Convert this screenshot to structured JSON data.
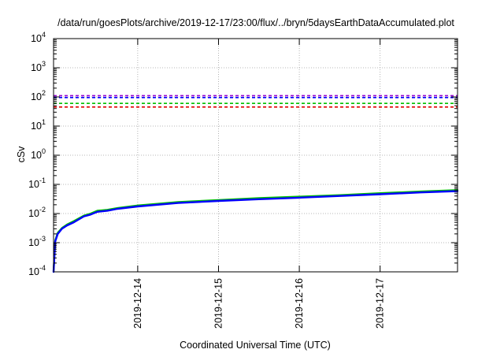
{
  "chart_data": {
    "type": "line",
    "title": "/data/run/goesPlots/archive/2019-12-17/23:00/flux/../bryn/5daysEarthDataAccumulated.plot",
    "xlabel": "Coordinated Universal Time (UTC)",
    "ylabel": "cSv",
    "x_scale": "time",
    "xlim": [
      "2019-12-12T23:00",
      "2019-12-17T23:00"
    ],
    "x_ticks": [
      "2019-12-14",
      "2019-12-15",
      "2019-12-16",
      "2019-12-17"
    ],
    "y_scale": "log",
    "ylim": [
      0.0001,
      10000
    ],
    "y_tick_exponents": [
      "-4",
      "-3",
      "-2",
      "-1",
      "0",
      "1",
      "2",
      "3",
      "4"
    ],
    "y_tick_base": "10",
    "grid": true,
    "legend": "none",
    "reference_lines": [
      {
        "value": 110,
        "color": "#9400d3",
        "style": "dashed"
      },
      {
        "value": 95,
        "color": "#0000ff",
        "style": "dashed"
      },
      {
        "value": 60,
        "color": "#00c000",
        "style": "dashed"
      },
      {
        "value": 45,
        "color": "#e00000",
        "style": "dashed"
      }
    ],
    "series": [
      {
        "color": "#00c000",
        "x": [
          "2019-12-12T23:00",
          "2019-12-12T23:30",
          "2019-12-13T00:15",
          "2019-12-13T01:30",
          "2019-12-13T03:00",
          "2019-12-13T05:00",
          "2019-12-13T08:00",
          "2019-12-13T10:00",
          "2019-12-13T12:00",
          "2019-12-13T15:00",
          "2019-12-13T18:00",
          "2019-12-14T00:00",
          "2019-12-14T12:00",
          "2019-12-15T00:00",
          "2019-12-15T12:00",
          "2019-12-16T00:00",
          "2019-12-16T12:00",
          "2019-12-17T00:00",
          "2019-12-17T12:00",
          "2019-12-17T23:00"
        ],
        "values": [
          0.0001,
          0.0012,
          0.0022,
          0.0032,
          0.0042,
          0.0055,
          0.0085,
          0.01,
          0.0125,
          0.0135,
          0.0155,
          0.019,
          0.025,
          0.029,
          0.034,
          0.038,
          0.043,
          0.05,
          0.057,
          0.064
        ]
      },
      {
        "color": "#0000ff",
        "x": [
          "2019-12-12T23:00",
          "2019-12-12T23:30",
          "2019-12-13T00:15",
          "2019-12-13T01:30",
          "2019-12-13T03:00",
          "2019-12-13T05:00",
          "2019-12-13T08:00",
          "2019-12-13T10:00",
          "2019-12-13T12:00",
          "2019-12-13T15:00",
          "2019-12-13T18:00",
          "2019-12-14T00:00",
          "2019-12-14T12:00",
          "2019-12-15T00:00",
          "2019-12-15T12:00",
          "2019-12-16T00:00",
          "2019-12-16T12:00",
          "2019-12-17T00:00",
          "2019-12-17T12:00",
          "2019-12-17T23:00"
        ],
        "values": [
          0.0001,
          0.0011,
          0.002,
          0.003,
          0.0039,
          0.005,
          0.008,
          0.0092,
          0.0115,
          0.0125,
          0.0145,
          0.0175,
          0.023,
          0.027,
          0.031,
          0.035,
          0.04,
          0.046,
          0.053,
          0.059
        ]
      }
    ]
  }
}
